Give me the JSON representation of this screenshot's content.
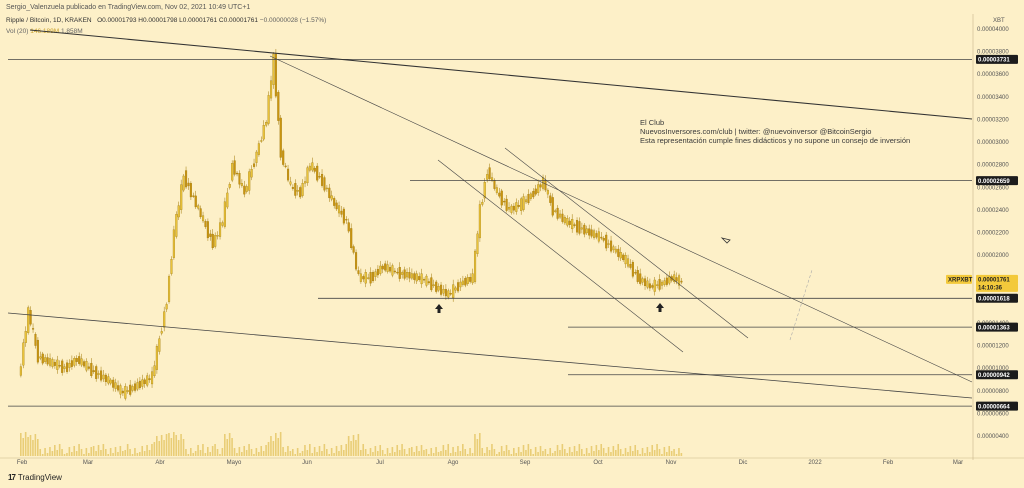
{
  "caption": "Sergio_Valenzuela publicado en TradingView.com, Nov 02, 2021 10:49 UTC+1",
  "symbol": {
    "name": "Ripple / Bitcoin, 1D, KRAKEN",
    "open": "O0.00001793",
    "high": "H0.00001798",
    "low": "L0.00001761",
    "close": "C0.00001761",
    "change": "−0.00000028 (−1.57%)"
  },
  "volume": {
    "label": "Vol (20)",
    "value": "146.189M",
    "ma": "1.858M"
  },
  "annotation": {
    "line1": "El Club",
    "line2": "NuevosInversores.com/club | twitter: @nuevoinversor @BitcoinSergio",
    "line3": "Esta representación cumple fines didácticos y no supone un consejo de inversión"
  },
  "footer": {
    "brand": "TradingView",
    "logo": "17"
  },
  "chart_data": {
    "type": "line",
    "title": "Ripple / Bitcoin, 1D, KRAKEN",
    "currency": "XBT",
    "x_months": [
      "Feb",
      "Mar",
      "Abr",
      "Mayo",
      "Jun",
      "Jul",
      "Ago",
      "Sep",
      "Oct",
      "Nov",
      "Dic",
      "2022",
      "Feb",
      "Mar"
    ],
    "y_ticks": [
      "0.00004000",
      "0.00003800",
      "0.00003600",
      "0.00003400",
      "0.00003200",
      "0.00003000",
      "0.00002800",
      "0.00002600",
      "0.00002400",
      "0.00002200",
      "0.00002000",
      "0.00001800",
      "0.00001600",
      "0.00001400",
      "0.00001200",
      "0.00001000",
      "0.00000800",
      "0.00000600",
      "0.00000400"
    ],
    "ylim": [
      3.2e-06,
      4.2e-06
    ],
    "close_series": [
      {
        "d": "2021-02-01",
        "v": 9e-06
      },
      {
        "d": "2021-02-05",
        "v": 1.5e-05
      },
      {
        "d": "2021-02-09",
        "v": 1.1e-05
      },
      {
        "d": "2021-02-14",
        "v": 1.05e-05
      },
      {
        "d": "2021-02-20",
        "v": 1e-05
      },
      {
        "d": "2021-02-25",
        "v": 1.08e-05
      },
      {
        "d": "2021-03-03",
        "v": 9.8e-06
      },
      {
        "d": "2021-03-10",
        "v": 8.9e-06
      },
      {
        "d": "2021-03-16",
        "v": 7.8e-06
      },
      {
        "d": "2021-03-22",
        "v": 8.5e-06
      },
      {
        "d": "2021-03-28",
        "v": 9.2e-06
      },
      {
        "d": "2021-04-03",
        "v": 1.6e-05
      },
      {
        "d": "2021-04-06",
        "v": 2.2e-05
      },
      {
        "d": "2021-04-10",
        "v": 2.7e-05
      },
      {
        "d": "2021-04-14",
        "v": 2.5e-05
      },
      {
        "d": "2021-04-18",
        "v": 2.3e-05
      },
      {
        "d": "2021-04-22",
        "v": 2.1e-05
      },
      {
        "d": "2021-04-26",
        "v": 2.3e-05
      },
      {
        "d": "2021-04-30",
        "v": 2.8e-05
      },
      {
        "d": "2021-05-05",
        "v": 2.55e-05
      },
      {
        "d": "2021-05-10",
        "v": 2.9e-05
      },
      {
        "d": "2021-05-14",
        "v": 3.2e-05
      },
      {
        "d": "2021-05-17",
        "v": 3.731e-05
      },
      {
        "d": "2021-05-20",
        "v": 2.9e-05
      },
      {
        "d": "2021-05-24",
        "v": 2.6e-05
      },
      {
        "d": "2021-05-28",
        "v": 2.55e-05
      },
      {
        "d": "2021-06-01",
        "v": 2.8e-05
      },
      {
        "d": "2021-06-06",
        "v": 2.65e-05
      },
      {
        "d": "2021-06-11",
        "v": 2.45e-05
      },
      {
        "d": "2021-06-16",
        "v": 2.3e-05
      },
      {
        "d": "2021-06-21",
        "v": 1.8e-05
      },
      {
        "d": "2021-06-26",
        "v": 1.8e-05
      },
      {
        "d": "2021-07-01",
        "v": 1.9e-05
      },
      {
        "d": "2021-07-06",
        "v": 1.85e-05
      },
      {
        "d": "2021-07-12",
        "v": 1.82e-05
      },
      {
        "d": "2021-07-18",
        "v": 1.78e-05
      },
      {
        "d": "2021-07-24",
        "v": 1.7e-05
      },
      {
        "d": "2021-07-28",
        "v": 1.65e-05
      },
      {
        "d": "2021-08-02",
        "v": 1.75e-05
      },
      {
        "d": "2021-08-07",
        "v": 1.8e-05
      },
      {
        "d": "2021-08-10",
        "v": 2.4e-05
      },
      {
        "d": "2021-08-13",
        "v": 2.75e-05
      },
      {
        "d": "2021-08-17",
        "v": 2.55e-05
      },
      {
        "d": "2021-08-22",
        "v": 2.4e-05
      },
      {
        "d": "2021-08-27",
        "v": 2.45e-05
      },
      {
        "d": "2021-09-01",
        "v": 2.55e-05
      },
      {
        "d": "2021-09-05",
        "v": 2.65e-05
      },
      {
        "d": "2021-09-09",
        "v": 2.4e-05
      },
      {
        "d": "2021-09-14",
        "v": 2.3e-05
      },
      {
        "d": "2021-09-19",
        "v": 2.25e-05
      },
      {
        "d": "2021-09-24",
        "v": 2.2e-05
      },
      {
        "d": "2021-09-29",
        "v": 2.15e-05
      },
      {
        "d": "2021-10-04",
        "v": 2.05e-05
      },
      {
        "d": "2021-10-09",
        "v": 1.95e-05
      },
      {
        "d": "2021-10-14",
        "v": 1.8e-05
      },
      {
        "d": "2021-10-19",
        "v": 1.72e-05
      },
      {
        "d": "2021-10-24",
        "v": 1.75e-05
      },
      {
        "d": "2021-10-28",
        "v": 1.8e-05
      },
      {
        "d": "2021-11-01",
        "v": 1.761e-05
      }
    ],
    "price_labels": [
      {
        "text": "0.00003731",
        "style": "dark",
        "value": 3.731e-05
      },
      {
        "text": "0.00002659",
        "style": "dark",
        "value": 2.659e-05
      },
      {
        "text": "XBT",
        "style": "header"
      },
      {
        "text": "XRPXBT",
        "style": "symbol"
      },
      {
        "text": "0.00001761",
        "style": "current",
        "value": 1.761e-05
      },
      {
        "text": "14:10:36",
        "style": "timer"
      },
      {
        "text": "0.00001618",
        "style": "dark",
        "value": 1.618e-05
      },
      {
        "text": "0.00001363",
        "style": "dark",
        "value": 1.363e-05
      },
      {
        "text": "0.00000942",
        "style": "dark",
        "value": 9.42e-06
      },
      {
        "text": "0.00000664",
        "style": "dark",
        "value": 6.64e-06
      }
    ],
    "horizontal_levels": [
      3.731e-05,
      2.659e-05,
      1.618e-05,
      1.363e-05,
      9.42e-06,
      6.64e-06
    ],
    "grid": false,
    "colors": {
      "candle": "#d8a514",
      "line": "#555555",
      "label_bg": "#1c1c1c",
      "bg": "#fdf0c8"
    }
  }
}
